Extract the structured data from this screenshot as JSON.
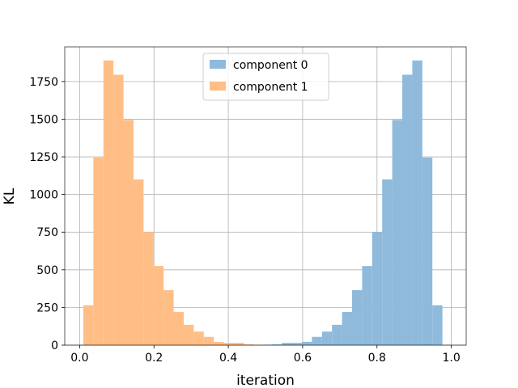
{
  "chart_data": {
    "type": "bar",
    "title": "",
    "xlabel": "iteration",
    "ylabel": "KL",
    "xlim": [
      -0.04,
      1.04
    ],
    "ylim": [
      0,
      1980
    ],
    "x_ticks": [
      "0.0",
      "0.2",
      "0.4",
      "0.6",
      "0.8",
      "1.0"
    ],
    "y_ticks": [
      "0",
      "250",
      "500",
      "750",
      "1000",
      "1250",
      "1500",
      "1750"
    ],
    "grid": true,
    "legend_position": "top-center",
    "series": [
      {
        "name": "component 0",
        "color": "#8fbadb",
        "bins": [
          {
            "x0": 0.49,
            "x1": 0.517,
            "y": 3
          },
          {
            "x0": 0.517,
            "x1": 0.544,
            "y": 5
          },
          {
            "x0": 0.544,
            "x1": 0.571,
            "y": 15
          },
          {
            "x0": 0.571,
            "x1": 0.598,
            "y": 15
          },
          {
            "x0": 0.598,
            "x1": 0.625,
            "y": 22
          },
          {
            "x0": 0.625,
            "x1": 0.652,
            "y": 55
          },
          {
            "x0": 0.652,
            "x1": 0.679,
            "y": 90
          },
          {
            "x0": 0.679,
            "x1": 0.706,
            "y": 135
          },
          {
            "x0": 0.706,
            "x1": 0.733,
            "y": 220
          },
          {
            "x0": 0.733,
            "x1": 0.76,
            "y": 365
          },
          {
            "x0": 0.76,
            "x1": 0.787,
            "y": 525
          },
          {
            "x0": 0.787,
            "x1": 0.814,
            "y": 750
          },
          {
            "x0": 0.814,
            "x1": 0.841,
            "y": 1100
          },
          {
            "x0": 0.841,
            "x1": 0.868,
            "y": 1495
          },
          {
            "x0": 0.868,
            "x1": 0.895,
            "y": 1795
          },
          {
            "x0": 0.895,
            "x1": 0.922,
            "y": 1890
          },
          {
            "x0": 0.922,
            "x1": 0.949,
            "y": 1245
          },
          {
            "x0": 0.949,
            "x1": 0.976,
            "y": 265
          }
        ]
      },
      {
        "name": "component 1",
        "color": "#ffbe86",
        "bins": [
          {
            "x0": 0.01,
            "x1": 0.037,
            "y": 265
          },
          {
            "x0": 0.037,
            "x1": 0.064,
            "y": 1245
          },
          {
            "x0": 0.064,
            "x1": 0.091,
            "y": 1890
          },
          {
            "x0": 0.091,
            "x1": 0.118,
            "y": 1795
          },
          {
            "x0": 0.118,
            "x1": 0.145,
            "y": 1495
          },
          {
            "x0": 0.145,
            "x1": 0.172,
            "y": 1100
          },
          {
            "x0": 0.172,
            "x1": 0.199,
            "y": 750
          },
          {
            "x0": 0.199,
            "x1": 0.226,
            "y": 525
          },
          {
            "x0": 0.226,
            "x1": 0.253,
            "y": 365
          },
          {
            "x0": 0.253,
            "x1": 0.28,
            "y": 220
          },
          {
            "x0": 0.28,
            "x1": 0.307,
            "y": 135
          },
          {
            "x0": 0.307,
            "x1": 0.334,
            "y": 90
          },
          {
            "x0": 0.334,
            "x1": 0.361,
            "y": 55
          },
          {
            "x0": 0.361,
            "x1": 0.388,
            "y": 22
          },
          {
            "x0": 0.388,
            "x1": 0.415,
            "y": 15
          },
          {
            "x0": 0.415,
            "x1": 0.442,
            "y": 15
          },
          {
            "x0": 0.442,
            "x1": 0.469,
            "y": 5
          },
          {
            "x0": 0.469,
            "x1": 0.496,
            "y": 3
          }
        ]
      }
    ]
  }
}
